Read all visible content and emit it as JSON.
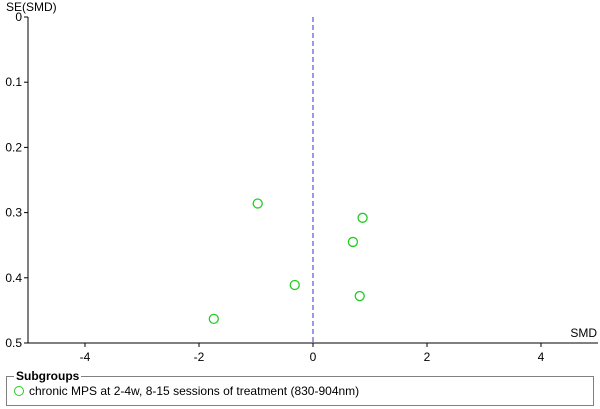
{
  "chart_data": {
    "type": "scatter",
    "title": "",
    "xlabel": "SMD",
    "ylabel": "SE(SMD)",
    "xlim": [
      -5,
      5
    ],
    "ylim": [
      0,
      0.5
    ],
    "y_inverted": true,
    "x_ticks": [
      "-4",
      "-2",
      "0",
      "2",
      "4"
    ],
    "x_tick_values": [
      -4,
      -2,
      0,
      2,
      4
    ],
    "y_ticks": [
      "0",
      "0.1",
      "0.2",
      "0.3",
      "0.4",
      "0.5"
    ],
    "y_tick_values": [
      0,
      0.1,
      0.2,
      0.3,
      0.4,
      0.5
    ],
    "reference_line": {
      "x": 0,
      "style": "dashed",
      "color": "#3333cc"
    },
    "grid": false,
    "marker_color": "#22cc22",
    "points": [
      {
        "x": -0.97,
        "y": 0.286
      },
      {
        "x": 0.87,
        "y": 0.308
      },
      {
        "x": 0.7,
        "y": 0.345
      },
      {
        "x": -0.32,
        "y": 0.411
      },
      {
        "x": 0.82,
        "y": 0.428
      },
      {
        "x": -1.74,
        "y": 0.463
      }
    ],
    "legend": {
      "title": "Subgroups",
      "entries": [
        "chronic MPS at 2-4w, 8-15 sessions of treatment (830-904nm)"
      ],
      "position": "bottom"
    }
  }
}
